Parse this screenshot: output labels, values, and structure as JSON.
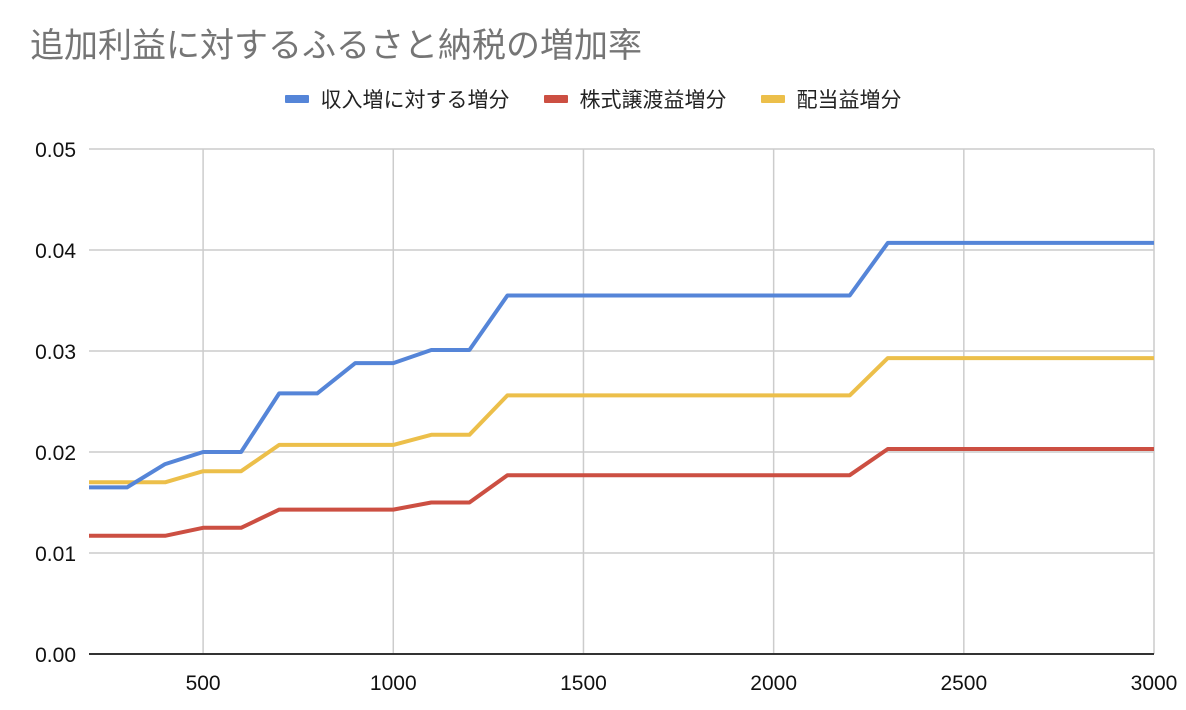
{
  "chart_data": {
    "type": "line",
    "title": "追加利益に対するふるさと納税の増加率",
    "xlabel": "",
    "ylabel": "",
    "xlim": [
      200,
      3000
    ],
    "ylim": [
      0,
      0.05
    ],
    "grid": true,
    "legend_position": "top",
    "x_ticks": [
      500,
      1000,
      1500,
      2000,
      2500,
      3000
    ],
    "y_ticks": [
      "0.00",
      "0.01",
      "0.02",
      "0.03",
      "0.04",
      "0.05"
    ],
    "x": [
      200,
      300,
      400,
      500,
      600,
      700,
      800,
      900,
      1000,
      1100,
      1200,
      1300,
      1400,
      1500,
      1600,
      1700,
      1800,
      1900,
      2000,
      2100,
      2200,
      2300,
      2400,
      2500,
      2600,
      2700,
      2800,
      2900,
      3000
    ],
    "series": [
      {
        "name": "収入増に対する増分",
        "color": "#5585d8",
        "values": [
          0.0165,
          0.0165,
          0.0188,
          0.02,
          0.02,
          0.0258,
          0.0258,
          0.0288,
          0.0288,
          0.0301,
          0.0301,
          0.0355,
          0.0355,
          0.0355,
          0.0355,
          0.0355,
          0.0355,
          0.0355,
          0.0355,
          0.0355,
          0.0355,
          0.0407,
          0.0407,
          0.0407,
          0.0407,
          0.0407,
          0.0407,
          0.0407,
          0.0407
        ]
      },
      {
        "name": "株式譲渡益増分",
        "color": "#cc4f42",
        "values": [
          0.0117,
          0.0117,
          0.0117,
          0.0125,
          0.0125,
          0.0143,
          0.0143,
          0.0143,
          0.0143,
          0.015,
          0.015,
          0.0177,
          0.0177,
          0.0177,
          0.0177,
          0.0177,
          0.0177,
          0.0177,
          0.0177,
          0.0177,
          0.0177,
          0.0203,
          0.0203,
          0.0203,
          0.0203,
          0.0203,
          0.0203,
          0.0203,
          0.0203
        ]
      },
      {
        "name": "配当益増分",
        "color": "#ecbf4a",
        "values": [
          0.017,
          0.017,
          0.017,
          0.0181,
          0.0181,
          0.0207,
          0.0207,
          0.0207,
          0.0207,
          0.0217,
          0.0217,
          0.0256,
          0.0256,
          0.0256,
          0.0256,
          0.0256,
          0.0256,
          0.0256,
          0.0256,
          0.0256,
          0.0256,
          0.0293,
          0.0293,
          0.0293,
          0.0293,
          0.0293,
          0.0293,
          0.0293,
          0.0293
        ]
      }
    ]
  },
  "legend": {
    "items": [
      {
        "label": "収入増に対する増分",
        "color": "#5585d8"
      },
      {
        "label": "株式譲渡益増分",
        "color": "#cc4f42"
      },
      {
        "label": "配当益増分",
        "color": "#ecbf4a"
      }
    ]
  }
}
